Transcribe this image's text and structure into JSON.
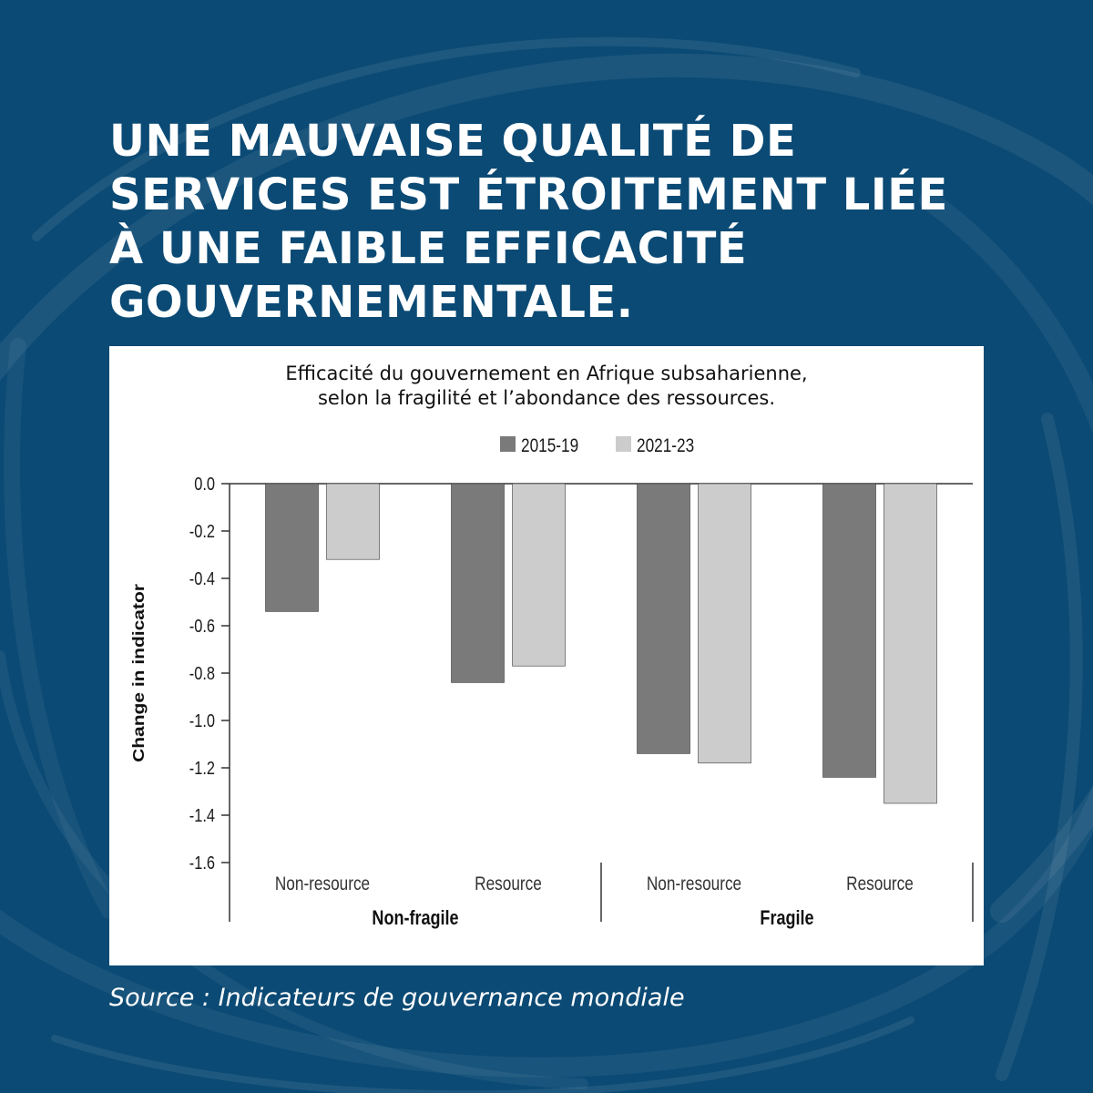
{
  "headline": "UNE MAUVAISE QUALITÉ DE SERVICES EST ÉTROITEMENT LIÉE À UNE FAIBLE EFFICACITÉ GOUVERNEMENTALE.",
  "source": "Source : Indicateurs de gouvernance mondiale",
  "colors": {
    "background": "#0b4a74",
    "series_2015": "#7a7a7a",
    "series_2021": "#cccccc",
    "axis": "#333333"
  },
  "chart_data": {
    "type": "bar",
    "title": "Efficacité du gouvernement en Afrique subsaharienne,",
    "subtitle": "selon la fragilité et l’abondance des ressources.",
    "ylabel": "Change in indicator",
    "xlabel": "",
    "ylim": [
      -1.6,
      0.0
    ],
    "yticks": [
      "0.0",
      "-0.2",
      "-0.4",
      "-0.6",
      "-0.8",
      "-1.0",
      "-1.2",
      "-1.4",
      "-1.6"
    ],
    "grid": false,
    "legend_position": "top-center",
    "groups": [
      {
        "name": "Non-fragile",
        "categories": [
          "Non-resource",
          "Resource"
        ]
      },
      {
        "name": "Fragile",
        "categories": [
          "Non-resource",
          "Resource"
        ]
      }
    ],
    "categories": [
      "Non-resource",
      "Resource",
      "Non-resource",
      "Resource"
    ],
    "series": [
      {
        "name": "2015-19",
        "values": [
          -0.54,
          -0.84,
          -1.14,
          -1.24
        ]
      },
      {
        "name": "2021-23",
        "values": [
          -0.32,
          -0.77,
          -1.18,
          -1.35
        ]
      }
    ]
  }
}
